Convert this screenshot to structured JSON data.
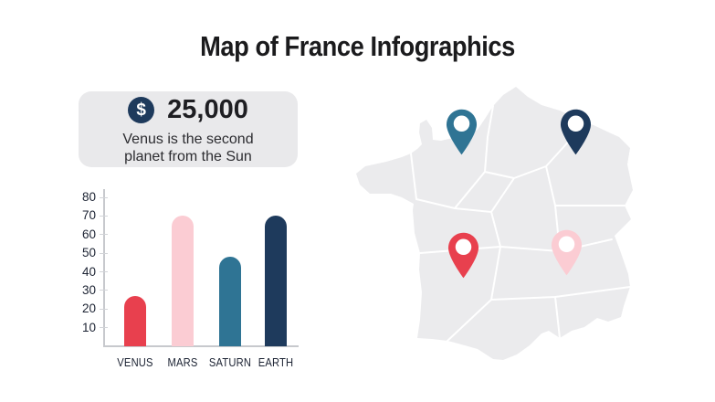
{
  "title": "Map of France Infographics",
  "stat_card": {
    "icon": "dollar-icon",
    "dollar_symbol": "$",
    "amount": "25,000",
    "description": "Venus is the second planet from the Sun"
  },
  "chart_data": {
    "type": "bar",
    "categories": [
      "VENUS",
      "MARS",
      "SATURN",
      "EARTH"
    ],
    "values": [
      27,
      70,
      48,
      70
    ],
    "bar_colors": [
      "#e8404e",
      "#fbccd3",
      "#2f7494",
      "#1e3a5c"
    ],
    "yticks": [
      10,
      20,
      30,
      40,
      50,
      60,
      70,
      80
    ],
    "ylim": [
      0,
      80
    ],
    "grid": false,
    "legend": "none",
    "title": "",
    "xlabel": "",
    "ylabel": ""
  },
  "map": {
    "region": "France",
    "fill_color": "#ebebed",
    "border_color": "#ffffff",
    "pins": [
      {
        "name": "pin-northwest",
        "color": "#2f7494"
      },
      {
        "name": "pin-northeast",
        "color": "#1e3a5c"
      },
      {
        "name": "pin-southwest",
        "color": "#e8404e"
      },
      {
        "name": "pin-southeast",
        "color": "#fbccd3"
      }
    ]
  },
  "colors": {
    "background": "#ffffff",
    "card_background": "#e9e9eb",
    "navy": "#1e3a5c",
    "red": "#e8404e",
    "pink": "#fbccd3",
    "teal": "#2f7494",
    "title_text": "#1b1b1d",
    "axis_line": "#c7c9cd",
    "tick_text": "#1c2333"
  }
}
